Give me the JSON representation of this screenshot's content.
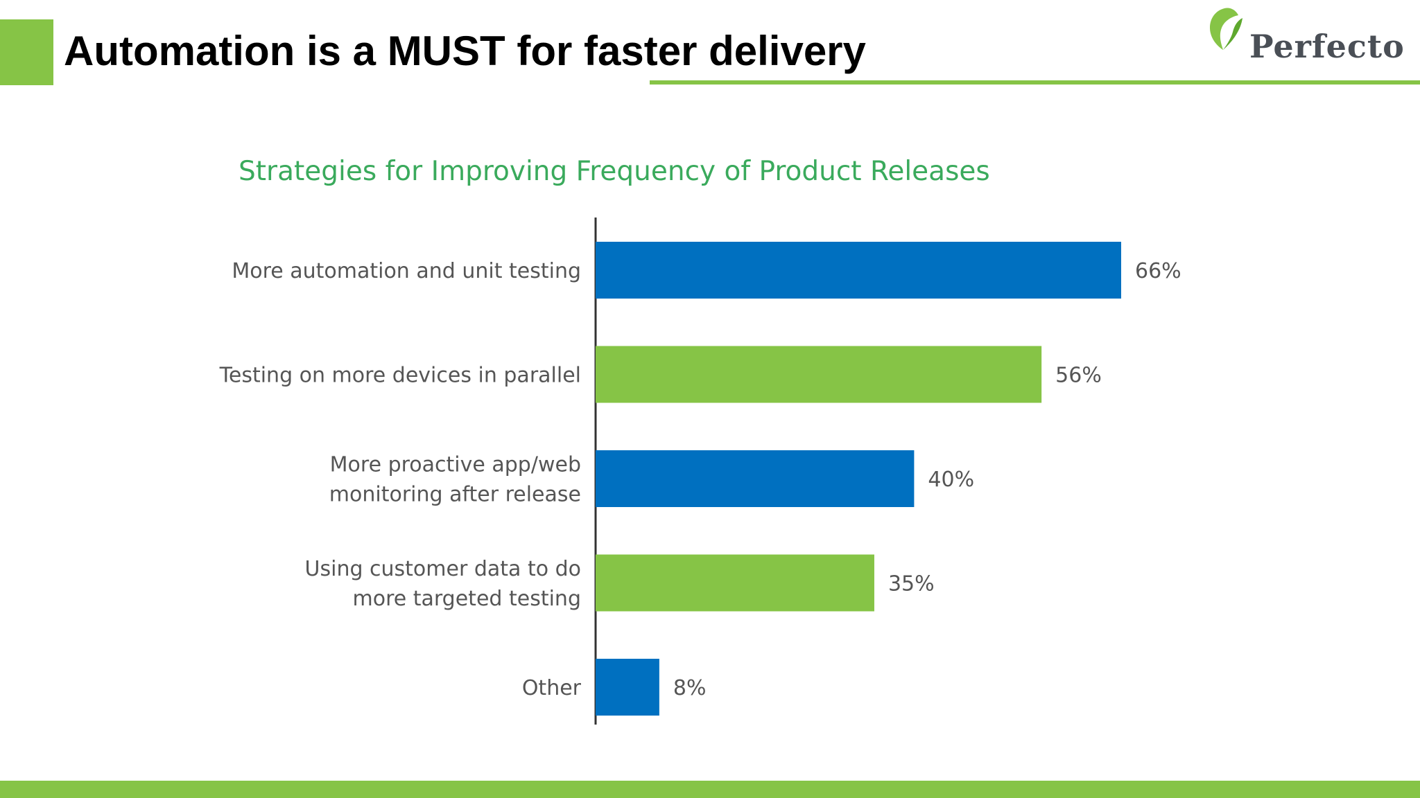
{
  "slide": {
    "title": "Automation is a MUST for faster delivery",
    "logo_text": "Perfecto",
    "accent_color": "#86c446"
  },
  "chart_data": {
    "type": "bar",
    "orientation": "horizontal",
    "title": "Strategies for Improving Frequency of Product Releases",
    "categories": [
      "More automation and unit testing",
      "Testing on more devices in parallel",
      "More proactive app/web monitoring after release",
      "Using customer data to do more targeted testing",
      "Other"
    ],
    "category_lines": [
      [
        "More automation and unit testing"
      ],
      [
        "Testing on more devices in parallel"
      ],
      [
        "More proactive app/web",
        "monitoring after release"
      ],
      [
        "Using customer data to do",
        "more targeted testing"
      ],
      [
        "Other"
      ]
    ],
    "values": [
      66,
      56,
      40,
      35,
      8
    ],
    "value_labels": [
      "66%",
      "56%",
      "40%",
      "35%",
      "8%"
    ],
    "bar_colors": [
      "#0070c0",
      "#86c446",
      "#0070c0",
      "#86c446",
      "#0070c0"
    ],
    "title_color": "#3aaa5c",
    "xlim": [
      0,
      100
    ],
    "grid": false,
    "legend": "none"
  }
}
